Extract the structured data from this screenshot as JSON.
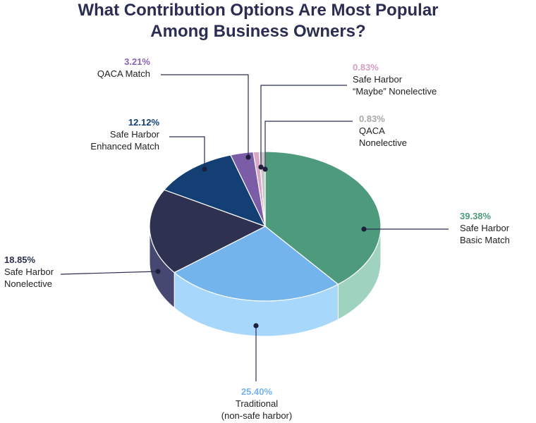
{
  "chart_data": {
    "type": "pie",
    "title": [
      "What Contribution Options Are Most Popular",
      "Among Business Owners?"
    ],
    "slices": [
      {
        "label": [
          "Safe Harbor",
          "Basic Match"
        ],
        "value": 39.38,
        "pct_text": "39.38%",
        "color": "#4e9a7c",
        "side_color": "#9fd3bf",
        "pct_color": "#4e9a7c"
      },
      {
        "label": [
          "Traditional",
          "(non-safe harbor)"
        ],
        "value": 25.4,
        "pct_text": "25.40%",
        "color": "#74b4ec",
        "side_color": "#a7d8fb",
        "pct_color": "#74b4ec"
      },
      {
        "label": [
          "Safe Harbor",
          "Nonelective"
        ],
        "value": 18.85,
        "pct_text": "18.85%",
        "color": "#2e3150",
        "side_color": "#474871",
        "pct_color": "#2e3150"
      },
      {
        "label": [
          "Safe Harbor",
          "Enhanced Match"
        ],
        "value": 12.12,
        "pct_text": "12.12%",
        "color": "#133f75",
        "side_color": "#133f75",
        "pct_color": "#133f75"
      },
      {
        "label": [
          "QACA Match"
        ],
        "value": 3.21,
        "pct_text": "3.21%",
        "color": "#7b5ca6",
        "side_color": "#7b5ca6",
        "pct_color": "#8a63b3"
      },
      {
        "label": [
          "Safe Harbor",
          "“Maybe” Nonelective"
        ],
        "value": 0.83,
        "pct_text": "0.83%",
        "color": "#d9a7c7",
        "side_color": "#d9a7c7",
        "pct_color": "#d4a0c1"
      },
      {
        "label": [
          "QACA",
          "Nonelective"
        ],
        "value": 0.83,
        "pct_text": "0.83%",
        "color": "#c6c6c6",
        "side_color": "#c6c6c6",
        "pct_color": "#a8a8a8"
      }
    ]
  }
}
